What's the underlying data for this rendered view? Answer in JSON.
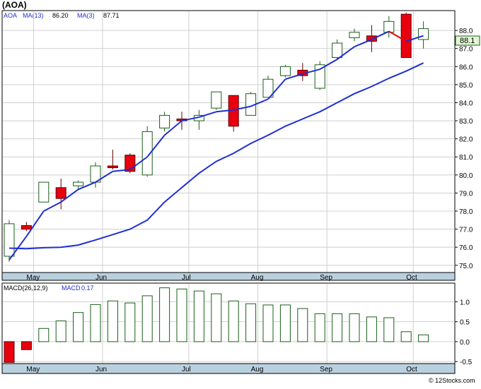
{
  "chart_data": [
    {
      "type": "candlestick",
      "title": "(AOA)",
      "ticker_label": "AOA",
      "ma13_label": "MA(13)",
      "ma13_value": "86.20",
      "ma3_label": "MA(3)",
      "ma3_value": "87.71",
      "last_price_label": "88.1",
      "y_ticks": [
        "75.0",
        "76.0",
        "77.0",
        "78.0",
        "79.0",
        "80.0",
        "81.0",
        "82.0",
        "83.0",
        "84.0",
        "85.0",
        "86.0",
        "87.0",
        "88.0"
      ],
      "ylim": [
        74.6,
        89.1
      ],
      "x_ticks": [
        {
          "label": "May",
          "i": 1
        },
        {
          "label": "Jun",
          "i": 5
        },
        {
          "label": "Jul",
          "i": 10
        },
        {
          "label": "Aug",
          "i": 14
        },
        {
          "label": "Sep",
          "i": 18
        },
        {
          "label": "Oct",
          "i": 23
        }
      ],
      "candles": [
        {
          "o": 75.5,
          "h": 77.5,
          "l": 75.2,
          "c": 77.3
        },
        {
          "o": 77.2,
          "h": 77.4,
          "l": 76.9,
          "c": 77.0
        },
        {
          "o": 78.5,
          "h": 79.6,
          "l": 78.5,
          "c": 79.6
        },
        {
          "o": 79.3,
          "h": 79.8,
          "l": 78.1,
          "c": 78.7
        },
        {
          "o": 79.4,
          "h": 79.7,
          "l": 79.2,
          "c": 79.6
        },
        {
          "o": 79.6,
          "h": 80.7,
          "l": 79.3,
          "c": 80.5
        },
        {
          "o": 80.5,
          "h": 81.4,
          "l": 80.3,
          "c": 80.4
        },
        {
          "o": 81.1,
          "h": 81.2,
          "l": 80.1,
          "c": 80.2
        },
        {
          "o": 80.0,
          "h": 82.7,
          "l": 79.9,
          "c": 82.4
        },
        {
          "o": 82.6,
          "h": 83.5,
          "l": 82.4,
          "c": 83.3
        },
        {
          "o": 83.1,
          "h": 83.5,
          "l": 82.5,
          "c": 83.0
        },
        {
          "o": 83.0,
          "h": 83.6,
          "l": 82.5,
          "c": 83.3
        },
        {
          "o": 83.7,
          "h": 84.6,
          "l": 83.6,
          "c": 84.6
        },
        {
          "o": 84.4,
          "h": 84.4,
          "l": 82.4,
          "c": 82.7
        },
        {
          "o": 83.3,
          "h": 84.6,
          "l": 83.3,
          "c": 84.5
        },
        {
          "o": 84.3,
          "h": 85.5,
          "l": 84.3,
          "c": 85.3
        },
        {
          "o": 85.5,
          "h": 86.1,
          "l": 85.4,
          "c": 86.0
        },
        {
          "o": 85.8,
          "h": 86.2,
          "l": 85.2,
          "c": 85.5
        },
        {
          "o": 84.8,
          "h": 86.3,
          "l": 84.7,
          "c": 86.1
        },
        {
          "o": 86.5,
          "h": 87.5,
          "l": 86.4,
          "c": 87.3
        },
        {
          "o": 87.6,
          "h": 88.1,
          "l": 87.4,
          "c": 87.9
        },
        {
          "o": 87.7,
          "h": 88.3,
          "l": 86.8,
          "c": 87.4
        },
        {
          "o": 87.9,
          "h": 88.8,
          "l": 87.6,
          "c": 88.5
        },
        {
          "o": 88.9,
          "h": 89.0,
          "l": 86.5,
          "c": 86.5
        },
        {
          "o": 87.5,
          "h": 88.5,
          "l": 87.0,
          "c": 88.1
        }
      ],
      "ma13": [
        null,
        null,
        null,
        null,
        null,
        null,
        null,
        null,
        null,
        null,
        null,
        null,
        null,
        null,
        null,
        null,
        null,
        null,
        null,
        null,
        null,
        null,
        null,
        null,
        null
      ],
      "ma13_line": [
        75.95,
        75.92,
        75.97,
        76.0,
        76.12,
        76.4,
        76.7,
        77.0,
        77.5,
        78.5,
        79.3,
        80.1,
        80.75,
        81.2,
        81.75,
        82.2,
        82.7,
        83.1,
        83.5,
        84.0,
        84.5,
        84.9,
        85.35,
        85.75,
        86.2
      ],
      "ma3_line": [
        75.3,
        76.6,
        78.0,
        78.5,
        79.2,
        79.6,
        80.2,
        80.3,
        81.0,
        82.2,
        83.0,
        83.2,
        83.5,
        83.6,
        83.8,
        84.2,
        85.3,
        85.6,
        85.85,
        86.4,
        87.1,
        87.5,
        87.95,
        87.4,
        87.71
      ]
    },
    {
      "type": "bar",
      "title": "MACD(26,12,9)",
      "value_label": "MACD",
      "value": "0.17",
      "y_ticks": [
        "-0.5",
        "0.0",
        "0.5",
        "1.0"
      ],
      "ylim": [
        -0.55,
        1.45
      ],
      "values": [
        -0.52,
        -0.2,
        0.33,
        0.52,
        0.73,
        0.93,
        1.02,
        0.97,
        1.15,
        1.35,
        1.32,
        1.27,
        1.2,
        1.02,
        0.95,
        0.92,
        0.92,
        0.83,
        0.7,
        0.7,
        0.7,
        0.62,
        0.6,
        0.25,
        0.17
      ]
    }
  ],
  "footer": {
    "watermark": "© 12Stocks.com"
  },
  "colors": {
    "up_candle_stroke": "#1a5e1a",
    "down_candle_fill": "#e8000f",
    "ma13_line": "#1f2fd0",
    "ma3_line": "#1f2fd0",
    "ma3_down_segment": "#e8000f",
    "axis_band": "#b9d0df",
    "grid": "#cfcfcf"
  }
}
